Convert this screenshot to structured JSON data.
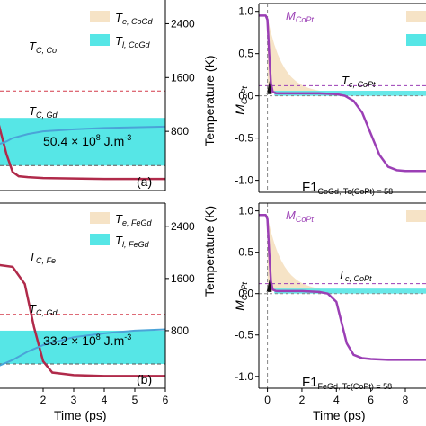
{
  "panels": [
    {
      "id": "top-left",
      "letter": "(a)",
      "energy_text": "50.4 × 10",
      "energy_exp": "8",
      "energy_unit": " J.m",
      "energy_unit_exp": "-3",
      "legend": [
        {
          "main": "T",
          "sub": "e, CoGd",
          "color": "#f6e3c6"
        },
        {
          "main": "T",
          "sub": "l, CoGd",
          "color": "#56e6e6"
        }
      ],
      "tc_labels": [
        {
          "main": "T",
          "sub": "C, Co"
        },
        {
          "main": "T",
          "sub": "C, Gd"
        }
      ]
    },
    {
      "id": "bottom-left",
      "letter": "(b)",
      "energy_text": "33.2 × 10",
      "energy_exp": "8",
      "energy_unit": " J.m",
      "energy_unit_exp": "-3",
      "legend": [
        {
          "main": "T",
          "sub": "e, FeGd",
          "color": "#f6e3c6"
        },
        {
          "main": "T",
          "sub": "l, FeGd",
          "color": "#56e6e6"
        }
      ],
      "tc_labels": [
        {
          "main": "T",
          "sub": "C, Fe"
        },
        {
          "main": "T",
          "sub": "C, Gd"
        }
      ]
    },
    {
      "id": "top-right",
      "m_label": {
        "main": "M",
        "sub": "CoPt"
      },
      "tc_label": {
        "main": "T",
        "sub": "c, CoPt"
      },
      "footer": {
        "main": "F1",
        "sub": "CoGd, Tc(CoPt) = 58"
      }
    },
    {
      "id": "bottom-right",
      "m_label": {
        "main": "M",
        "sub": "CoPt"
      },
      "tc_label": {
        "main": "T",
        "sub": "c, CoPt"
      },
      "footer": {
        "main": "F1",
        "sub": "FeGd, Tc(CoPt) = 58"
      }
    }
  ],
  "axes": {
    "left_x_label": "Time (ps)",
    "right_x_label": "Time (ps)",
    "temperature_label": "Temperature (K)",
    "m_y_label": {
      "main": "M",
      "sub": "CoPt"
    }
  },
  "chart_data": [
    {
      "type": "line",
      "panel": "top-left",
      "ylabel_right": "Temperature (K)",
      "temp_ticks": [
        "800",
        "1600",
        "2400"
      ],
      "temp_ylim": [
        0,
        2700
      ],
      "xlim": [
        0,
        6
      ],
      "series": [
        {
          "role": "M_dark",
          "color": "#b02a4a",
          "x": [
            0,
            0.2,
            0.5,
            0.8,
            1.0,
            1.2,
            1.5,
            2,
            3,
            4,
            5,
            6
          ],
          "y": [
            0.3,
            0.1,
            -0.3,
            -0.7,
            -0.9,
            -0.95,
            -0.96,
            -0.97,
            -0.975,
            -0.98,
            -0.98,
            -0.98
          ]
        },
        {
          "role": "T_lattice",
          "color": "#4aa3d8",
          "x": [
            0,
            0.2,
            0.5,
            0.8,
            1.0,
            1.5,
            2,
            3,
            4,
            5,
            6
          ],
          "y": [
            300,
            450,
            600,
            650,
            700,
            760,
            800,
            830,
            850,
            860,
            870
          ]
        }
      ],
      "hlines": [
        {
          "role": "T_C_Co",
          "value": 1400,
          "color": "#d33a4a"
        },
        {
          "role": "T_C_Gd",
          "value": 290,
          "color": "#555555"
        }
      ],
      "band": {
        "from": 290,
        "to": 1000,
        "color": "#56e6e6"
      }
    },
    {
      "type": "line",
      "panel": "bottom-left",
      "xlabel": "Time (ps)",
      "ylabel_right": "Temperature (K)",
      "temp_ticks": [
        "800",
        "1600",
        "2400"
      ],
      "temp_ylim": [
        0,
        2700
      ],
      "xlim": [
        0,
        6
      ],
      "x_ticks": [
        "2",
        "3",
        "4",
        "5",
        "6"
      ],
      "series": [
        {
          "role": "M_dark",
          "color": "#b02a4a",
          "x": [
            0,
            1.0,
            1.4,
            1.7,
            2.0,
            2.3,
            3,
            4,
            5,
            6
          ],
          "y": [
            0.35,
            0.3,
            0.1,
            -0.4,
            -0.8,
            -0.93,
            -0.96,
            -0.97,
            -0.97,
            -0.97
          ]
        },
        {
          "role": "T_lattice",
          "color": "#4aa3d8",
          "x": [
            0,
            0.5,
            1.0,
            1.5,
            2,
            3,
            4,
            5,
            6
          ],
          "y": [
            150,
            250,
            350,
            480,
            580,
            700,
            760,
            800,
            820
          ]
        }
      ],
      "hlines": [
        {
          "role": "T_C_Fe",
          "value": 1050,
          "color": "#d33a4a"
        },
        {
          "role": "T_C_Gd",
          "value": 290,
          "color": "#555555"
        }
      ],
      "band": {
        "from": 290,
        "to": 800,
        "color": "#56e6e6"
      }
    },
    {
      "type": "line",
      "panel": "top-right",
      "xlabel": "Time (ps)",
      "ylabel": "M_CoPt",
      "ylim": [
        -1.1,
        1.05
      ],
      "xlim": [
        -0.5,
        9.2
      ],
      "y_ticks": [
        "1.0",
        "0.5",
        "0.0",
        "-0.5",
        "-1.0"
      ],
      "series": [
        {
          "role": "M_CoPt",
          "color": "#9b3fb5",
          "x": [
            -0.5,
            -0.1,
            0,
            0.1,
            0.2,
            0.3,
            0.5,
            1,
            2,
            3,
            4,
            4.5,
            5,
            5.5,
            6,
            6.5,
            7,
            7.5,
            8,
            8.5,
            9.2
          ],
          "y": [
            0.95,
            0.95,
            0.9,
            0.5,
            0.15,
            0.05,
            0.03,
            0.03,
            0.03,
            0.03,
            0.02,
            0.0,
            -0.06,
            -0.2,
            -0.45,
            -0.7,
            -0.84,
            -0.88,
            -0.89,
            -0.89,
            -0.89
          ]
        }
      ],
      "hline": {
        "value": 0.12,
        "color": "#9b3fb5"
      },
      "vline": {
        "value": 0
      }
    },
    {
      "type": "line",
      "panel": "bottom-right",
      "xlabel": "Time (ps)",
      "ylabel": "M_CoPt",
      "ylim": [
        -1.1,
        1.05
      ],
      "xlim": [
        -0.5,
        9.2
      ],
      "x_ticks": [
        "0",
        "2",
        "4",
        "6",
        "8"
      ],
      "y_ticks": [
        "1.0",
        "0.5",
        "0.0",
        "-0.5",
        "-1.0"
      ],
      "series": [
        {
          "role": "M_CoPt",
          "color": "#9b3fb5",
          "x": [
            -0.5,
            -0.1,
            0,
            0.1,
            0.2,
            0.3,
            0.5,
            1,
            2,
            3,
            3.5,
            4,
            4.3,
            4.6,
            5,
            5.5,
            6,
            7,
            8,
            9.2
          ],
          "y": [
            0.95,
            0.95,
            0.9,
            0.5,
            0.15,
            0.05,
            0.03,
            0.03,
            0.03,
            0.02,
            0.0,
            -0.1,
            -0.35,
            -0.6,
            -0.74,
            -0.78,
            -0.79,
            -0.8,
            -0.8,
            -0.8
          ]
        }
      ],
      "hline": {
        "value": 0.12,
        "color": "#9b3fb5"
      },
      "vline": {
        "value": 0
      }
    }
  ]
}
